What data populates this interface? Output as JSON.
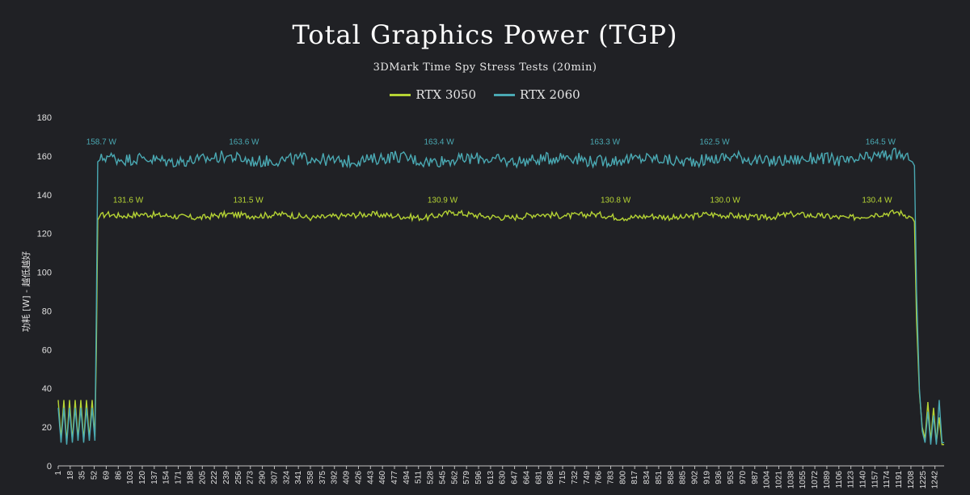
{
  "chart_data": {
    "type": "line",
    "title": "Total Graphics Power (TGP)",
    "subtitle": "3DMark Time Spy Stress Tests (20min)",
    "ylabel": "功耗 [W] - 越低越好",
    "xlabel": "",
    "ylim": [
      0,
      180
    ],
    "xlim": [
      1,
      1255
    ],
    "y_ticks": [
      0,
      20,
      40,
      60,
      80,
      100,
      120,
      140,
      160,
      180
    ],
    "x_ticks": [
      1,
      18,
      35,
      52,
      69,
      86,
      103,
      120,
      137,
      154,
      171,
      188,
      205,
      222,
      239,
      256,
      273,
      290,
      307,
      324,
      341,
      358,
      375,
      392,
      409,
      426,
      443,
      460,
      477,
      494,
      511,
      528,
      545,
      562,
      579,
      596,
      613,
      630,
      647,
      664,
      681,
      698,
      715,
      732,
      749,
      766,
      783,
      800,
      817,
      834,
      851,
      868,
      885,
      902,
      919,
      936,
      953,
      970,
      987,
      1004,
      1021,
      1038,
      1055,
      1072,
      1089,
      1106,
      1123,
      1140,
      1157,
      1174,
      1191,
      1208,
      1225,
      1242
    ],
    "grid": false,
    "legend_position": "top-center",
    "series": [
      {
        "name": "RTX 3050",
        "color": "#b5d334",
        "x": [
          1,
          5,
          9,
          13,
          17,
          21,
          25,
          29,
          33,
          37,
          41,
          45,
          49,
          53,
          55,
          57,
          60,
          70,
          90,
          120,
          160,
          200,
          240,
          280,
          320,
          360,
          400,
          440,
          480,
          520,
          560,
          600,
          640,
          680,
          720,
          760,
          800,
          840,
          880,
          920,
          960,
          1000,
          1040,
          1080,
          1120,
          1160,
          1190,
          1205,
          1210,
          1213,
          1216,
          1220,
          1224,
          1228,
          1232,
          1236,
          1240,
          1244,
          1248,
          1252,
          1255
        ],
        "values": [
          34,
          14,
          34,
          12,
          34,
          13,
          34,
          14,
          34,
          13,
          34,
          14,
          34,
          15,
          60,
          127,
          129,
          130,
          129,
          130,
          129,
          128,
          130,
          129,
          130,
          128,
          129,
          130,
          129,
          128,
          131,
          129,
          128,
          130,
          129,
          130,
          128,
          129,
          128,
          130,
          129,
          128,
          130,
          129,
          128,
          130,
          131,
          129,
          128,
          126,
          75,
          38,
          20,
          14,
          33,
          13,
          30,
          12,
          25,
          11,
          11
        ],
        "peak_labels": [
          {
            "x": 100,
            "text": "131.6 W"
          },
          {
            "x": 270,
            "text": "131.5 W"
          },
          {
            "x": 545,
            "text": "130.9 W"
          },
          {
            "x": 790,
            "text": "130.8 W"
          },
          {
            "x": 945,
            "text": "130.0 W"
          },
          {
            "x": 1160,
            "text": "130.4 W"
          }
        ]
      },
      {
        "name": "RTX 2060",
        "color": "#4aa9b3",
        "x": [
          1,
          5,
          9,
          13,
          17,
          21,
          25,
          29,
          33,
          37,
          41,
          45,
          49,
          53,
          55,
          57,
          60,
          70,
          90,
          120,
          160,
          200,
          240,
          280,
          320,
          360,
          400,
          440,
          480,
          520,
          560,
          600,
          640,
          680,
          720,
          760,
          800,
          840,
          880,
          920,
          960,
          1000,
          1040,
          1080,
          1120,
          1160,
          1190,
          1205,
          1210,
          1213,
          1216,
          1220,
          1224,
          1228,
          1232,
          1236,
          1240,
          1244,
          1248,
          1252,
          1255
        ],
        "values": [
          30,
          12,
          30,
          11,
          30,
          12,
          30,
          13,
          30,
          12,
          30,
          13,
          30,
          13,
          80,
          157,
          158,
          160,
          158,
          159,
          157,
          158,
          160,
          157,
          158,
          159,
          157,
          158,
          160,
          157,
          158,
          159,
          157,
          158,
          160,
          157,
          158,
          159,
          157,
          158,
          160,
          157,
          158,
          159,
          157,
          160,
          161,
          158,
          157,
          155,
          90,
          40,
          18,
          12,
          28,
          11,
          26,
          11,
          34,
          12,
          12
        ],
        "peak_labels": [
          {
            "x": 62,
            "text": "158.7 W"
          },
          {
            "x": 264,
            "text": "163.6 W"
          },
          {
            "x": 540,
            "text": "163.4 W"
          },
          {
            "x": 775,
            "text": "163.3 W"
          },
          {
            "x": 930,
            "text": "162.5 W"
          },
          {
            "x": 1165,
            "text": "164.5 W"
          }
        ]
      }
    ]
  }
}
